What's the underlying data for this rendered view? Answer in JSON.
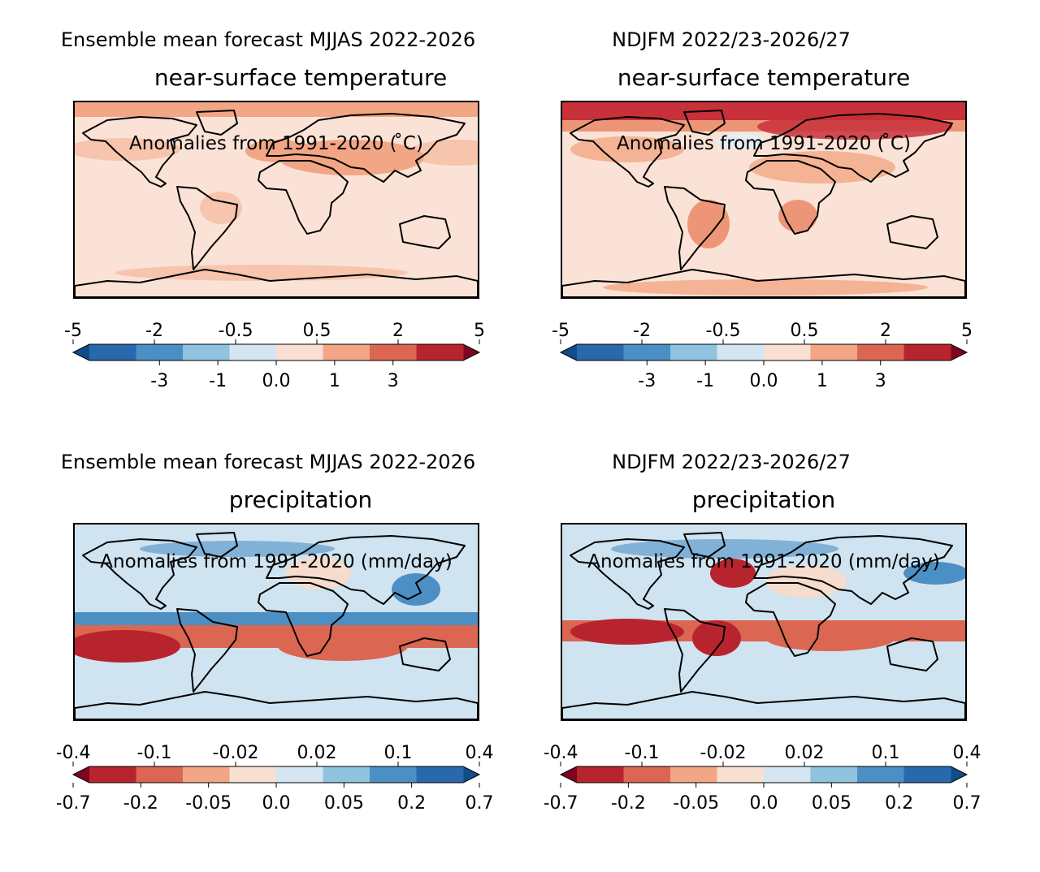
{
  "panels": [
    {
      "id": "temp-mjjas",
      "suptitle": "Ensemble mean forecast MJJAS 2022-2026",
      "subtitle": "near-surface temperature",
      "field": "temperature",
      "season": "MJJAS",
      "colorbar": {
        "colors": [
          "#2a68ad",
          "#4c8fc4",
          "#8fc3de",
          "#d3e6f1",
          "#fae0d2",
          "#f2a685",
          "#db6651",
          "#b8242e"
        ],
        "extend_low_color": "#0f4c8c",
        "extend_high_color": "#7e0520",
        "top_ticks": [
          "-5",
          "-2",
          "-0.5",
          "0.5",
          "2",
          "5"
        ],
        "bottom_ticks": [
          "-3",
          "-1",
          "0.0",
          "1",
          "3"
        ],
        "label": "Anomalies from 1991-2020 ( ̊C)"
      },
      "palette": {
        "ocean": "#fae3d6",
        "land": "#f7c5ad",
        "warm": "#f2a685",
        "hot": "#e47e62",
        "cool": "#e4eef5"
      }
    },
    {
      "id": "temp-ndjfm",
      "suptitle": "NDJFM 2022/23-2026/27",
      "subtitle": "near-surface temperature",
      "field": "temperature",
      "season": "NDJFM",
      "colorbar": {
        "colors": [
          "#2a68ad",
          "#4c8fc4",
          "#8fc3de",
          "#d3e6f1",
          "#fae0d2",
          "#f2a685",
          "#db6651",
          "#b8242e"
        ],
        "extend_low_color": "#0f4c8c",
        "extend_high_color": "#7e0520",
        "top_ticks": [
          "-5",
          "-2",
          "-0.5",
          "0.5",
          "2",
          "5"
        ],
        "bottom_ticks": [
          "-3",
          "-1",
          "0.0",
          "1",
          "3"
        ],
        "label": "Anomalies from 1991-2020 ( ̊C)"
      },
      "palette": {
        "ocean": "#fae3d6",
        "land": "#f4b395",
        "warm": "#ec9677",
        "hot": "#c8303a",
        "cool": "#e6eef4"
      }
    },
    {
      "id": "precip-mjjas",
      "suptitle": "Ensemble mean forecast MJJAS 2022-2026",
      "subtitle": "precipitation",
      "field": "precipitation",
      "season": "MJJAS",
      "colorbar": {
        "colors": [
          "#b8242e",
          "#db6651",
          "#f2a685",
          "#fae0d2",
          "#d3e6f1",
          "#8fc3de",
          "#4c8fc4",
          "#2a68ad"
        ],
        "extend_low_color": "#7e0520",
        "extend_high_color": "#0f4c8c",
        "top_ticks": [
          "-0.4",
          "-0.1",
          "-0.02",
          "0.02",
          "0.1",
          "0.4"
        ],
        "bottom_ticks": [
          "-0.7",
          "-0.2",
          "-0.05",
          "0.0",
          "0.05",
          "0.2",
          "0.7"
        ],
        "label": "Anomalies from 1991-2020 (mm/day)"
      },
      "palette": {
        "ocean": "#cfe3f0",
        "land": "#f6dccd",
        "wet": "#4c8fc4",
        "dry": "#db6651",
        "verydry": "#b8242e"
      }
    },
    {
      "id": "precip-ndjfm",
      "suptitle": "NDJFM 2022/23-2026/27",
      "subtitle": "precipitation",
      "field": "precipitation",
      "season": "NDJFM",
      "colorbar": {
        "colors": [
          "#b8242e",
          "#db6651",
          "#f2a685",
          "#fae0d2",
          "#d3e6f1",
          "#8fc3de",
          "#4c8fc4",
          "#2a68ad"
        ],
        "extend_low_color": "#7e0520",
        "extend_high_color": "#0f4c8c",
        "top_ticks": [
          "-0.4",
          "-0.1",
          "-0.02",
          "0.02",
          "0.1",
          "0.4"
        ],
        "bottom_ticks": [
          "-0.7",
          "-0.2",
          "-0.05",
          "0.0",
          "0.05",
          "0.2",
          "0.7"
        ],
        "label": "Anomalies from 1991-2020 (mm/day)"
      },
      "palette": {
        "ocean": "#cfe3f0",
        "land": "#f6dccd",
        "wet": "#4c8fc4",
        "dry": "#db6651",
        "verydry": "#b8242e"
      }
    }
  ]
}
